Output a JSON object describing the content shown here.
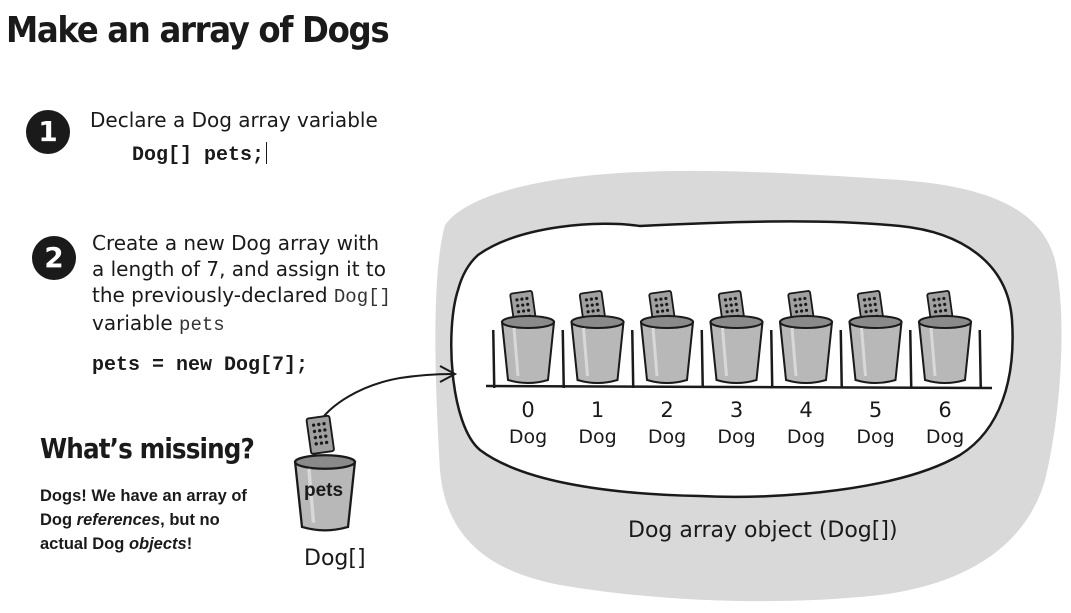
{
  "title": "Make an array of Dogs",
  "step1": {
    "number": "1",
    "text": "Declare a Dog array variable",
    "code": "Dog[] pets;"
  },
  "step2": {
    "number": "2",
    "line1": "Create a new Dog array with",
    "line2": "a length of 7, and assign it to",
    "line3_text": "the previously-declared ",
    "line3_code": "Dog[]",
    "line4_text": "variable ",
    "line4_code": "pets",
    "code": "pets = new Dog[7];"
  },
  "missing": {
    "title": "What’s missing?",
    "body_pre": "Dogs! We  have an array of Dog ",
    "body_em1": "references",
    "body_mid": ", but no actual Dog ",
    "body_em2": "objects",
    "body_post": "!"
  },
  "reference": {
    "cup_label": "pets",
    "type_label": "Dog[]"
  },
  "array": {
    "caption": "Dog array object (Dog[])",
    "slots": [
      {
        "index": "0",
        "type": "Dog"
      },
      {
        "index": "1",
        "type": "Dog"
      },
      {
        "index": "2",
        "type": "Dog"
      },
      {
        "index": "3",
        "type": "Dog"
      },
      {
        "index": "4",
        "type": "Dog"
      },
      {
        "index": "5",
        "type": "Dog"
      },
      {
        "index": "6",
        "type": "Dog"
      }
    ]
  },
  "colors": {
    "background_blob": "#d9d9d9",
    "ink": "#1a1a1a",
    "cup_fill": "#b8b8b8",
    "remote_fill": "#9a9a9a"
  }
}
